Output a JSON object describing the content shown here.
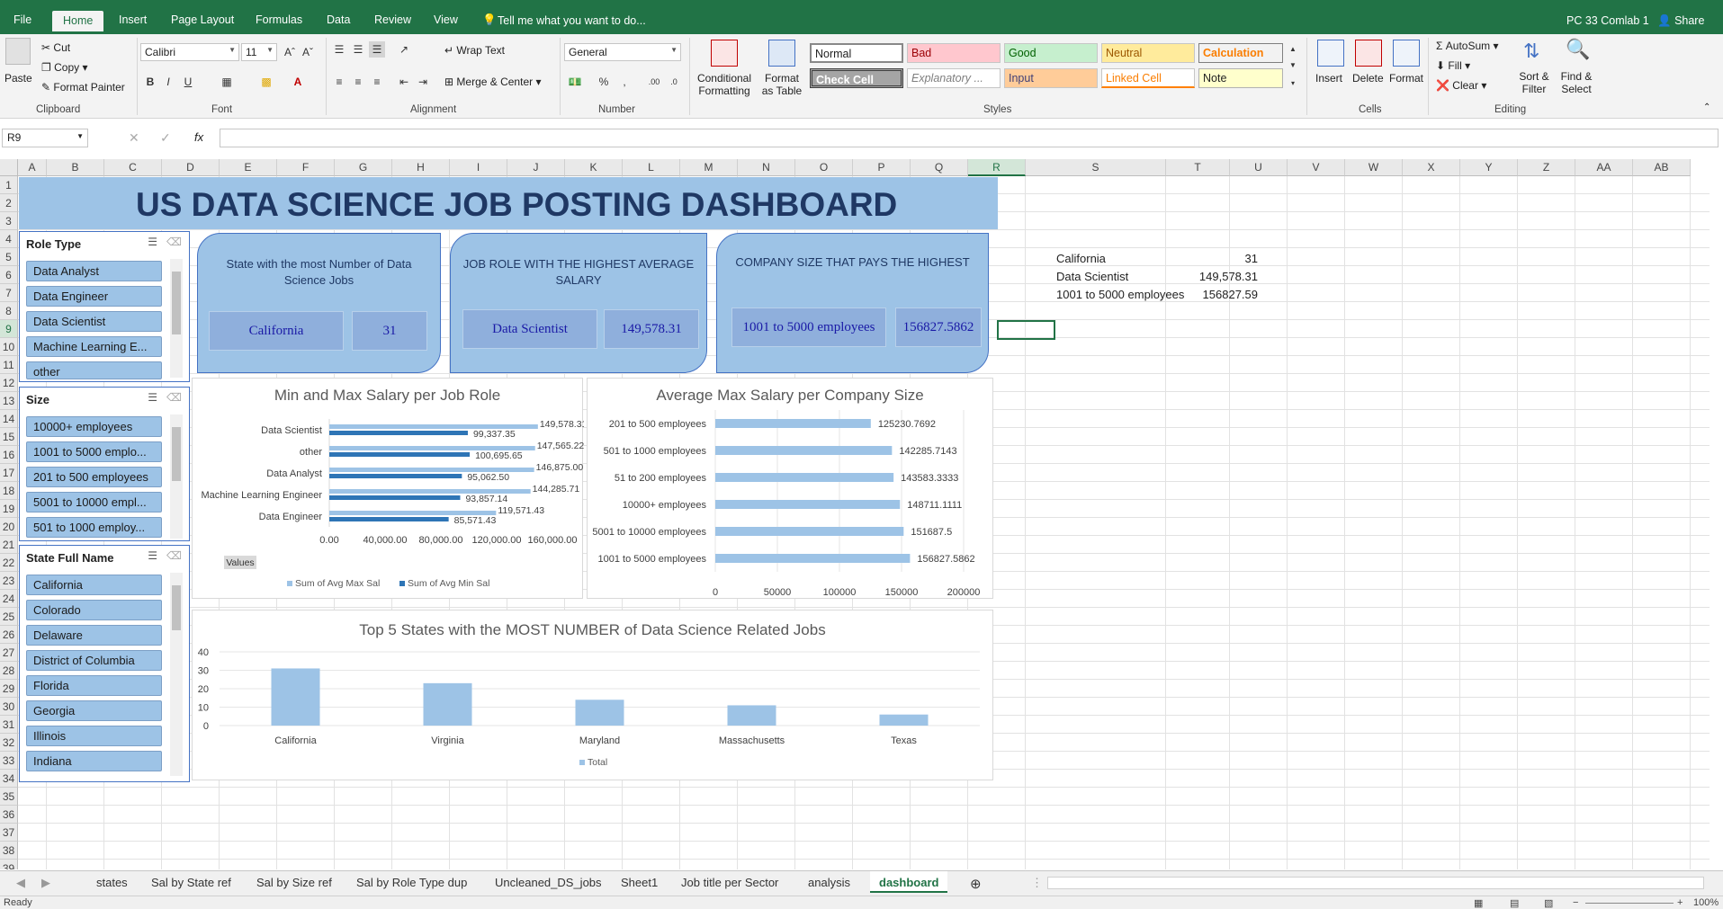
{
  "ribbon_tabs": [
    "File",
    "Home",
    "Insert",
    "Page Layout",
    "Formulas",
    "Data",
    "Review",
    "View"
  ],
  "active_tab": "Home",
  "tell_me": "Tell me what you want to do...",
  "user": "PC 33 Comlab 1",
  "share": "Share",
  "clipboard": {
    "paste": "Paste",
    "cut": "Cut",
    "copy": "Copy",
    "format_painter": "Format Painter",
    "label": "Clipboard"
  },
  "font": {
    "name": "Calibri",
    "size": "11",
    "label": "Font"
  },
  "alignment": {
    "wrap": "Wrap Text",
    "merge": "Merge & Center",
    "label": "Alignment"
  },
  "number": {
    "format": "General",
    "label": "Number"
  },
  "styles": {
    "conditional": "Conditional Formatting",
    "format_table": "Format as Table",
    "cells": [
      "Normal",
      "Bad",
      "Good",
      "Neutral",
      "Calculation",
      "Check Cell",
      "Explanatory ...",
      "Input",
      "Linked Cell",
      "Note"
    ],
    "label": "Styles"
  },
  "cells_group": {
    "insert": "Insert",
    "delete": "Delete",
    "format": "Format",
    "label": "Cells"
  },
  "editing": {
    "autosum": "AutoSum",
    "fill": "Fill",
    "clear": "Clear",
    "sort": "Sort & Filter",
    "find": "Find & Select",
    "label": "Editing"
  },
  "name_box": "R9",
  "columns": [
    "A",
    "B",
    "C",
    "D",
    "E",
    "F",
    "G",
    "H",
    "I",
    "J",
    "K",
    "L",
    "M",
    "N",
    "O",
    "P",
    "Q",
    "R",
    "S",
    "T",
    "U",
    "V",
    "W",
    "X",
    "Y",
    "Z",
    "AA",
    "AB"
  ],
  "rows": [
    "1",
    "2",
    "3",
    "4",
    "5",
    "6",
    "7",
    "8",
    "9",
    "10",
    "11",
    "12",
    "13",
    "14",
    "15",
    "16",
    "17",
    "18",
    "19",
    "20",
    "21",
    "22",
    "23",
    "24",
    "25",
    "26",
    "27",
    "28",
    "29",
    "30",
    "31",
    "32",
    "33",
    "34",
    "35",
    "36",
    "37",
    "38",
    "39"
  ],
  "dashboard_title": "US DATA SCIENCE JOB POSTING DASHBOARD",
  "slicers": {
    "role": {
      "title": "Role Type",
      "items": [
        "Data Analyst",
        "Data Engineer",
        "Data Scientist",
        "Machine Learning E...",
        "other"
      ]
    },
    "size": {
      "title": "Size",
      "items": [
        "10000+ employees",
        "1001 to 5000 emplo...",
        "201 to 500 employees",
        "5001 to 10000 empl...",
        "501 to 1000 employ..."
      ]
    },
    "state": {
      "title": "State Full Name",
      "items": [
        "California",
        "Colorado",
        "Delaware",
        "District of Columbia",
        "Florida",
        "Georgia",
        "Illinois",
        "Indiana"
      ]
    }
  },
  "cards": [
    {
      "title": "State with the most Number of Data Science Jobs",
      "v1": "California",
      "v2": "31"
    },
    {
      "title": "JOB ROLE WITH THE HIGHEST AVERAGE SALARY",
      "v1": "Data Scientist",
      "v2": "149,578.31"
    },
    {
      "title": "COMPANY SIZE THAT PAYS THE HIGHEST",
      "v1": "1001 to 5000 employees",
      "v2": "156827.5862"
    }
  ],
  "side_values": [
    {
      "label": "California",
      "value": "31"
    },
    {
      "label": "Data Scientist",
      "value": "149,578.31"
    },
    {
      "label": "1001 to 5000 employees",
      "value": "156827.59"
    }
  ],
  "sheet_tabs": [
    "states",
    "Sal by State ref",
    "Sal by Size ref",
    "Sal by Role Type dup",
    "Uncleaned_DS_jobs",
    "Sheet1",
    "Job title per Sector",
    "analysis",
    "dashboard"
  ],
  "active_sheet": "dashboard",
  "status": "Ready",
  "zoom": "100%",
  "colors": {
    "excel_green": "#217346",
    "dash_blue": "#9dc3e6",
    "bar_light": "#9dc3e6",
    "bar_dark": "#2e75b6"
  },
  "chart_data": [
    {
      "type": "bar",
      "orientation": "horizontal",
      "title": "Min and Max Salary per Job Role",
      "categories": [
        "Data Scientist",
        "other",
        "Data Analyst",
        "Machine Learning Engineer",
        "Data Engineer"
      ],
      "series": [
        {
          "name": "Sum of Avg Max Sal",
          "values": [
            149578.31,
            147565.22,
            146875.0,
            144285.71,
            119571.43
          ],
          "labels": [
            "149,578.31",
            "147,565.22",
            "146,875.00",
            "144,285.71",
            "119,571.43"
          ]
        },
        {
          "name": "Sum of Avg Min Sal",
          "values": [
            99337.35,
            100695.65,
            95062.5,
            93857.14,
            85571.43
          ],
          "labels": [
            "99,337.35",
            "100,695.65",
            "95,062.50",
            "93,857.14",
            "85,571.43"
          ]
        }
      ],
      "xlim": [
        0,
        160000
      ],
      "ticks": [
        "0.00",
        "40,000.00",
        "80,000.00",
        "120,000.00",
        "160,000.00"
      ],
      "field_button": "Values",
      "legend": "bottom"
    },
    {
      "type": "bar",
      "orientation": "horizontal",
      "title": "Average Max Salary per Company Size",
      "categories": [
        "201 to 500 employees",
        "501 to 1000 employees",
        "51 to 200 employees",
        "10000+ employees",
        "5001 to 10000 employees",
        "1001 to 5000 employees"
      ],
      "values": [
        125230.7692,
        142285.7143,
        143583.3333,
        148711.1111,
        151687.5,
        156827.5862
      ],
      "labels": [
        "125230.7692",
        "142285.7143",
        "143583.3333",
        "148711.1111",
        "151687.5",
        "156827.5862"
      ],
      "xlim": [
        0,
        200000
      ],
      "ticks": [
        "0",
        "50000",
        "100000",
        "150000",
        "200000"
      ]
    },
    {
      "type": "bar",
      "title": "Top 5 States with the MOST NUMBER of Data Science Related Jobs",
      "categories": [
        "California",
        "Virginia",
        "Maryland",
        "Massachusetts",
        "Texas"
      ],
      "series": [
        {
          "name": "Total",
          "values": [
            31,
            23,
            14,
            11,
            6
          ]
        }
      ],
      "ylim": [
        0,
        40
      ],
      "ticks": [
        "0",
        "10",
        "20",
        "30",
        "40"
      ],
      "legend": "bottom"
    }
  ]
}
